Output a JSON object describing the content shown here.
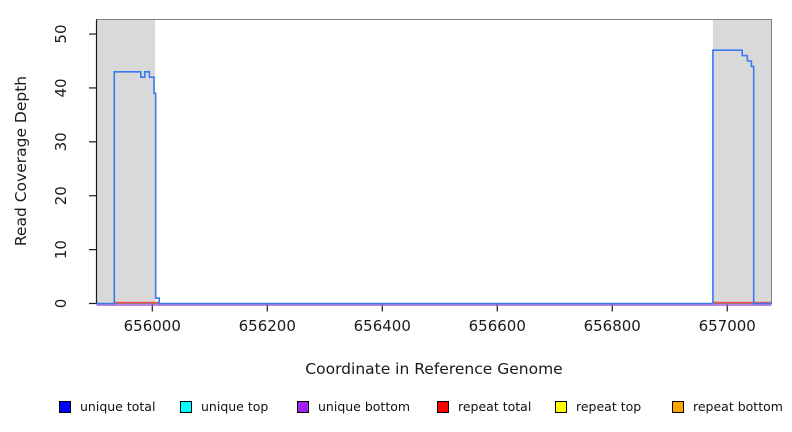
{
  "chart_data": {
    "type": "line",
    "subtype": "step-coverage",
    "title": "",
    "xlabel": "Coordinate in Reference Genome",
    "ylabel": "Read Coverage Depth",
    "xlim": [
      655903,
      657077
    ],
    "ylim": [
      0,
      52.7
    ],
    "x_ticks": [
      656000,
      656200,
      656400,
      656600,
      656800,
      657000
    ],
    "y_ticks": [
      0,
      10,
      20,
      30,
      40,
      50
    ],
    "grid": "off",
    "legend_position": "bottom",
    "colors": {
      "plot_line_blue": "#3a7bf0",
      "baseline_purple": "#9f5fd8",
      "baseline_red": "#ee5550",
      "shaded_gray": "#d9d9d9",
      "box_gray": "#7f7f7f",
      "axis_black": "#1a1a1a"
    },
    "shaded_regions": [
      {
        "name": "left-masked-region",
        "x1": 655903,
        "x2": 656005
      },
      {
        "name": "right-masked-region",
        "x1": 656975,
        "x2": 657077
      }
    ],
    "series": [
      {
        "name": "unique total",
        "color": "#3a7bf0",
        "type": "step",
        "points": [
          [
            655903,
            0
          ],
          [
            655934,
            0
          ],
          [
            655934,
            43
          ],
          [
            655980,
            43
          ],
          [
            655980,
            42
          ],
          [
            655987,
            42
          ],
          [
            655987,
            43
          ],
          [
            655995,
            43
          ],
          [
            655995,
            42
          ],
          [
            656003,
            42
          ],
          [
            656003,
            39
          ],
          [
            656006,
            39
          ],
          [
            656006,
            1
          ],
          [
            656012,
            1
          ],
          [
            656012,
            0
          ],
          [
            656975,
            0
          ],
          [
            656975,
            47
          ],
          [
            657026,
            47
          ],
          [
            657026,
            46
          ],
          [
            657035,
            46
          ],
          [
            657035,
            45
          ],
          [
            657042,
            45
          ],
          [
            657042,
            44
          ],
          [
            657046,
            44
          ],
          [
            657046,
            0
          ],
          [
            657077,
            0
          ]
        ]
      },
      {
        "name": "unique bottom",
        "color": "#9f5fd8",
        "type": "baseline",
        "segments": [
          {
            "x1": 655903,
            "x2": 657077,
            "y": 0
          }
        ]
      },
      {
        "name": "repeat total",
        "color": "#ee5550",
        "type": "baseline",
        "segments": [
          {
            "x1": 655934,
            "x2": 656012,
            "y": 0
          },
          {
            "x1": 656975,
            "x2": 657076,
            "y": 0
          }
        ]
      }
    ],
    "legend": [
      {
        "label": "unique total",
        "color": "#0000ff"
      },
      {
        "label": "unique top",
        "color": "#00ffff"
      },
      {
        "label": "unique bottom",
        "color": "#a020f0"
      },
      {
        "label": "repeat total",
        "color": "#ff0000"
      },
      {
        "label": "repeat top",
        "color": "#ffff00"
      },
      {
        "label": "repeat bottom",
        "color": "#ffa500"
      }
    ]
  }
}
